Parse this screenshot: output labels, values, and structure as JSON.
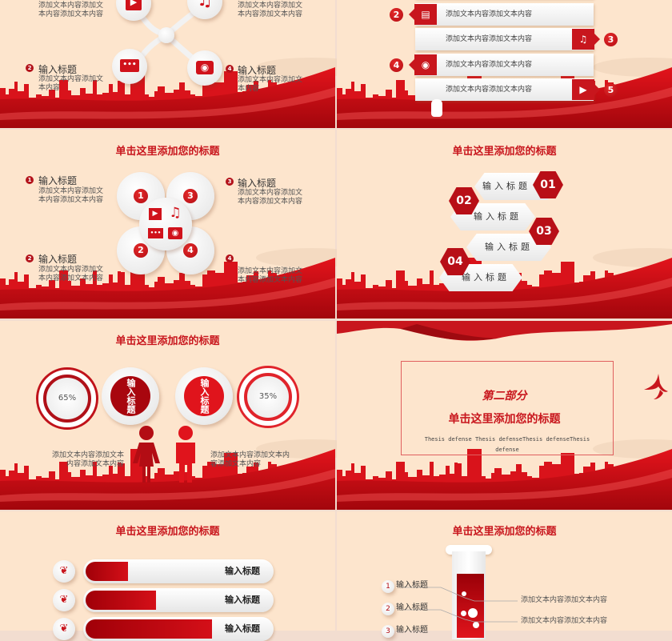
{
  "colors": {
    "accent": "#c8161d",
    "background": "#fde5cd",
    "dark_red": "#a00008"
  },
  "slide1": {
    "top_left_lines": [
      "添加文本内容添加文",
      "本内容添加文本内容"
    ],
    "top_right_lines": [
      "添加文本内容添加文",
      "本内容添加文本内容"
    ],
    "bottom_left": {
      "num": "2",
      "title": "输入标题",
      "lines": [
        "添加文本内容添加文",
        "本内容"
      ]
    },
    "bottom_right": {
      "num": "4",
      "title": "输入标题",
      "lines": [
        "添加文本内容添加文",
        "本内容"
      ]
    },
    "icons": [
      "video-icon",
      "music-icon",
      "chat-icon",
      "camera-icon"
    ]
  },
  "slide2": {
    "rows": [
      {
        "num": "2",
        "icon": "chat-icon",
        "glyph": "▤",
        "text": "添加文本内容添加文本内容",
        "side": "left"
      },
      {
        "num": "3",
        "icon": "music-icon",
        "glyph": "♫",
        "text": "添加文本内容添加文本内容",
        "side": "right"
      },
      {
        "num": "4",
        "icon": "camera-icon",
        "glyph": "◉",
        "text": "添加文本内容添加文本内容",
        "side": "left"
      },
      {
        "num": "5",
        "icon": "video-icon",
        "glyph": "▶",
        "text": "添加文本内容添加文本内容",
        "side": "right"
      }
    ]
  },
  "slide3": {
    "title": "单击这里添加您的标题",
    "items": [
      {
        "num": "1",
        "title": "输入标题",
        "lines": [
          "添加文本内容添加文",
          "本内容添加文本内容"
        ]
      },
      {
        "num": "3",
        "title": "输入标题",
        "lines": [
          "添加文本内容添加文",
          "本内容添加文本内容"
        ]
      },
      {
        "num": "2",
        "title": "输入标题",
        "lines": [
          "添加文本内容添加文",
          "本内容添加文本内容"
        ]
      },
      {
        "num": "4",
        "title": "",
        "lines": [
          "添加文本内容添加文",
          "本内容添加文本内容"
        ]
      }
    ],
    "circle_nums": [
      "1",
      "3",
      "2",
      "4"
    ]
  },
  "slide4": {
    "title": "单击这里添加您的标题",
    "items": [
      {
        "num": "01",
        "label": "输入标题"
      },
      {
        "num": "02",
        "label": "输入标题"
      },
      {
        "num": "03",
        "label": "输入标题"
      },
      {
        "num": "04",
        "label": "输入标题"
      }
    ]
  },
  "slide5": {
    "title": "单击这里添加您的标题",
    "percent_left": "65%",
    "percent_right": "35%",
    "percent_left_value": 65,
    "percent_right_value": 35,
    "bubble_left": "输入标题",
    "bubble_right": "输入标题",
    "text_left": [
      "添加文本内容添加文本",
      "内容添加文本内容"
    ],
    "text_right": [
      "添加文本内容添加文本内",
      "容添加文本内容"
    ]
  },
  "slide6": {
    "section": "第二部分",
    "title": "单击这里添加您的标题",
    "subtitle_lines": [
      "Thesis defense Thesis defenseThesis defenseThesis",
      "defense"
    ]
  },
  "slide7": {
    "title": "单击这里添加您的标题",
    "bars": [
      {
        "label": "输入标题",
        "fill": 0.23
      },
      {
        "label": "输入标题",
        "fill": 0.38
      },
      {
        "label": "输入标题",
        "fill": 0.68
      }
    ]
  },
  "slide8": {
    "title": "单击这里添加您的标题",
    "items": [
      {
        "num": "1",
        "label": "输入标题"
      },
      {
        "num": "2",
        "label": "输入标题"
      },
      {
        "num": "3",
        "label": "输入标题"
      }
    ],
    "notes": [
      "添加文本内容添加文本内容",
      "添加文本内容添加文本内容"
    ]
  }
}
